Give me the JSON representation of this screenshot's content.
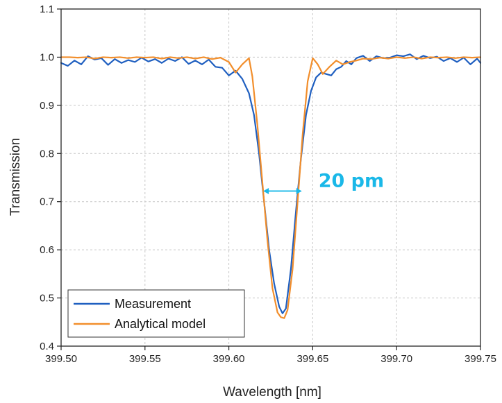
{
  "chart_data": {
    "type": "line",
    "title": "",
    "xlabel": "Wavelength [nm]",
    "ylabel": "Transmission",
    "xlim": [
      399.5,
      399.75
    ],
    "ylim": [
      0.4,
      1.1
    ],
    "x_ticks": [
      "399.50",
      "399.55",
      "399.60",
      "399.65",
      "399.70",
      "399.75"
    ],
    "y_ticks": [
      "0.4",
      "0.5",
      "0.6",
      "0.7",
      "0.8",
      "0.9",
      "1.0",
      "1.1"
    ],
    "grid": true,
    "legend_position": "bottom-left",
    "annotation": {
      "text": "20 pm",
      "color": "#1ab8e8",
      "y": 0.722,
      "x_from": 399.6205,
      "x_to": 399.6435
    },
    "series": [
      {
        "name": "Measurement",
        "color": "#1f5fc0",
        "x": [
          399.5,
          399.504,
          399.508,
          399.512,
          399.516,
          399.52,
          399.524,
          399.528,
          399.532,
          399.536,
          399.54,
          399.544,
          399.548,
          399.552,
          399.556,
          399.56,
          399.564,
          399.568,
          399.572,
          399.576,
          399.58,
          399.584,
          399.588,
          399.592,
          399.596,
          399.6,
          399.604,
          399.608,
          399.612,
          399.615,
          399.618,
          399.621,
          399.624,
          399.627,
          399.63,
          399.632,
          399.634,
          399.637,
          399.64,
          399.643,
          399.646,
          399.649,
          399.652,
          399.655,
          399.658,
          399.661,
          399.664,
          399.667,
          399.67,
          399.673,
          399.676,
          399.68,
          399.684,
          399.688,
          399.692,
          399.696,
          399.7,
          399.704,
          399.708,
          399.712,
          399.716,
          399.72,
          399.724,
          399.728,
          399.732,
          399.736,
          399.74,
          399.744,
          399.748,
          399.75
        ],
        "y": [
          0.988,
          0.982,
          0.993,
          0.985,
          1.002,
          0.995,
          0.998,
          0.984,
          0.996,
          0.988,
          0.994,
          0.99,
          0.999,
          0.991,
          0.996,
          0.988,
          0.997,
          0.992,
          1.0,
          0.986,
          0.993,
          0.985,
          0.995,
          0.98,
          0.978,
          0.962,
          0.972,
          0.955,
          0.925,
          0.88,
          0.8,
          0.7,
          0.6,
          0.53,
          0.482,
          0.468,
          0.478,
          0.56,
          0.68,
          0.79,
          0.88,
          0.93,
          0.958,
          0.968,
          0.965,
          0.962,
          0.975,
          0.98,
          0.992,
          0.985,
          0.998,
          1.003,
          0.992,
          1.002,
          0.998,
          0.999,
          1.004,
          1.002,
          1.006,
          0.996,
          1.003,
          0.998,
          1.001,
          0.992,
          0.998,
          0.99,
          0.999,
          0.985,
          0.997,
          0.988
        ]
      },
      {
        "name": "Analytical model",
        "color": "#f28e2b",
        "x": [
          399.5,
          399.505,
          399.51,
          399.515,
          399.52,
          399.525,
          399.53,
          399.535,
          399.54,
          399.545,
          399.55,
          399.555,
          399.56,
          399.565,
          399.57,
          399.575,
          399.58,
          399.585,
          399.59,
          399.595,
          399.6,
          399.604,
          399.608,
          399.612,
          399.614,
          399.617,
          399.62,
          399.623,
          399.626,
          399.629,
          399.631,
          399.633,
          399.635,
          399.638,
          399.641,
          399.644,
          399.647,
          399.65,
          399.653,
          399.656,
          399.66,
          399.664,
          399.668,
          399.672,
          399.676,
          399.68,
          399.685,
          399.69,
          399.695,
          399.7,
          399.705,
          399.71,
          399.715,
          399.72,
          399.725,
          399.73,
          399.735,
          399.74,
          399.745,
          399.75
        ],
        "y": [
          1.0,
          1.0,
          0.999,
          1.0,
          0.997,
          1.0,
          0.999,
          1.0,
          0.998,
          1.0,
          0.999,
          1.0,
          0.997,
          1.0,
          0.998,
          1.0,
          0.997,
          1.0,
          0.996,
          0.999,
          0.99,
          0.968,
          0.985,
          0.998,
          0.96,
          0.86,
          0.74,
          0.62,
          0.52,
          0.47,
          0.46,
          0.458,
          0.475,
          0.56,
          0.7,
          0.84,
          0.95,
          0.998,
          0.985,
          0.965,
          0.98,
          0.993,
          0.985,
          0.99,
          0.993,
          0.997,
          0.996,
          0.999,
          0.997,
          1.0,
          0.998,
          1.0,
          0.997,
          1.0,
          0.999,
          1.0,
          0.998,
          1.0,
          0.999,
          1.0
        ]
      }
    ]
  }
}
